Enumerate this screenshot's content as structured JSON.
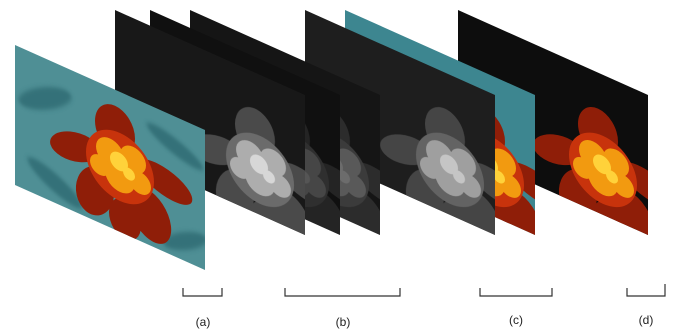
{
  "figure": {
    "labels": [
      "(a)",
      "(b)",
      "(c)",
      "(d)"
    ]
  }
}
